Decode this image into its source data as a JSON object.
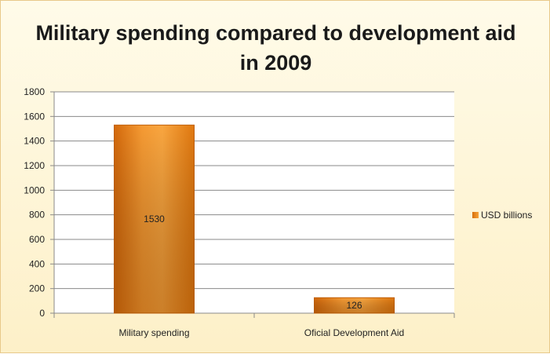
{
  "chart_data": {
    "type": "bar",
    "title_line1": "Military spending compared to development aid",
    "title_line2": "in 2009",
    "categories": [
      "Military spending",
      "Oficial Development Aid"
    ],
    "series": [
      {
        "name": "USD billions",
        "values": [
          1530,
          126
        ]
      }
    ],
    "ylim": [
      0,
      1800
    ],
    "yticks": [
      0,
      200,
      400,
      600,
      800,
      1000,
      1200,
      1400,
      1600,
      1800
    ],
    "grid": true,
    "legend_position": "right",
    "colors": {
      "bar_dark": "#d4690b",
      "bar_light": "#f9a640",
      "grid": "#8a8a8a"
    }
  }
}
